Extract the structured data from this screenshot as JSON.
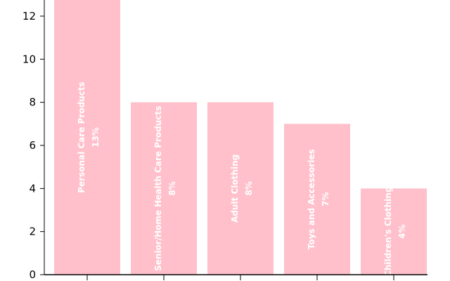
{
  "chart_data": {
    "type": "bar",
    "categories": [
      "Personal Care Products",
      "Senior/Home Health Care Products",
      "Adult Clothing",
      "Toys and Accessories",
      "Children's Clothing"
    ],
    "values": [
      13,
      8,
      8,
      7,
      4
    ],
    "value_labels": [
      "13%",
      "8%",
      "8%",
      "7%",
      "4%"
    ],
    "yticks": [
      0,
      2,
      4,
      6,
      8,
      10,
      12
    ],
    "ylim": [
      0,
      12.8
    ],
    "bar_color": "#ffc0cb",
    "label_color": "#ffffff",
    "axis_color": "#000000",
    "grid": false,
    "legend": "none",
    "title": "",
    "xlabel": "",
    "ylabel": ""
  }
}
